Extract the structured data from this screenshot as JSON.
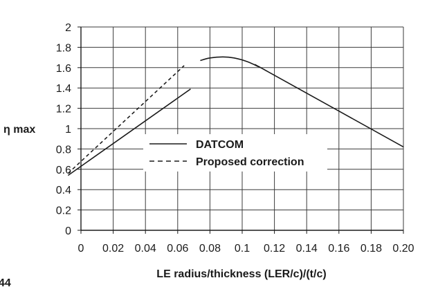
{
  "chart_data": {
    "type": "line",
    "xlabel": "LE radius/thickness  (LER/c)/(t/c)",
    "ylabel": "η max",
    "xlim": [
      0,
      0.2
    ],
    "ylim": [
      0,
      2
    ],
    "x_ticks": [
      "0",
      "0.02",
      "0.04",
      "0.06",
      "0.08",
      "0.1",
      "0.12",
      "0.14",
      "0.16",
      "0.18",
      "0.20"
    ],
    "y_ticks": [
      "0",
      "0.2",
      "0.4",
      "0.6",
      "0.8",
      "1",
      "1.2",
      "1.4",
      "1.6",
      "1.8",
      "2"
    ],
    "grid": true,
    "legend_position": "center",
    "series": [
      {
        "name": "DATCOM",
        "style": "solid",
        "segments": [
          [
            [
              -0.008,
              0.54
            ],
            [
              0.068,
              1.39
            ]
          ],
          [
            [
              0.074,
              1.67
            ],
            [
              0.08,
              1.695
            ],
            [
              0.088,
              1.705
            ],
            [
              0.095,
              1.695
            ],
            [
              0.103,
              1.66
            ],
            [
              0.11,
              1.61
            ],
            [
              0.116,
              1.56
            ],
            [
              0.2,
              0.82
            ]
          ]
        ]
      },
      {
        "name": "Proposed correction",
        "style": "dashed",
        "segments": [
          [
            [
              -0.008,
              0.56
            ],
            [
              0.064,
              1.62
            ]
          ]
        ]
      }
    ]
  },
  "footer": {
    "page_number": "44"
  }
}
